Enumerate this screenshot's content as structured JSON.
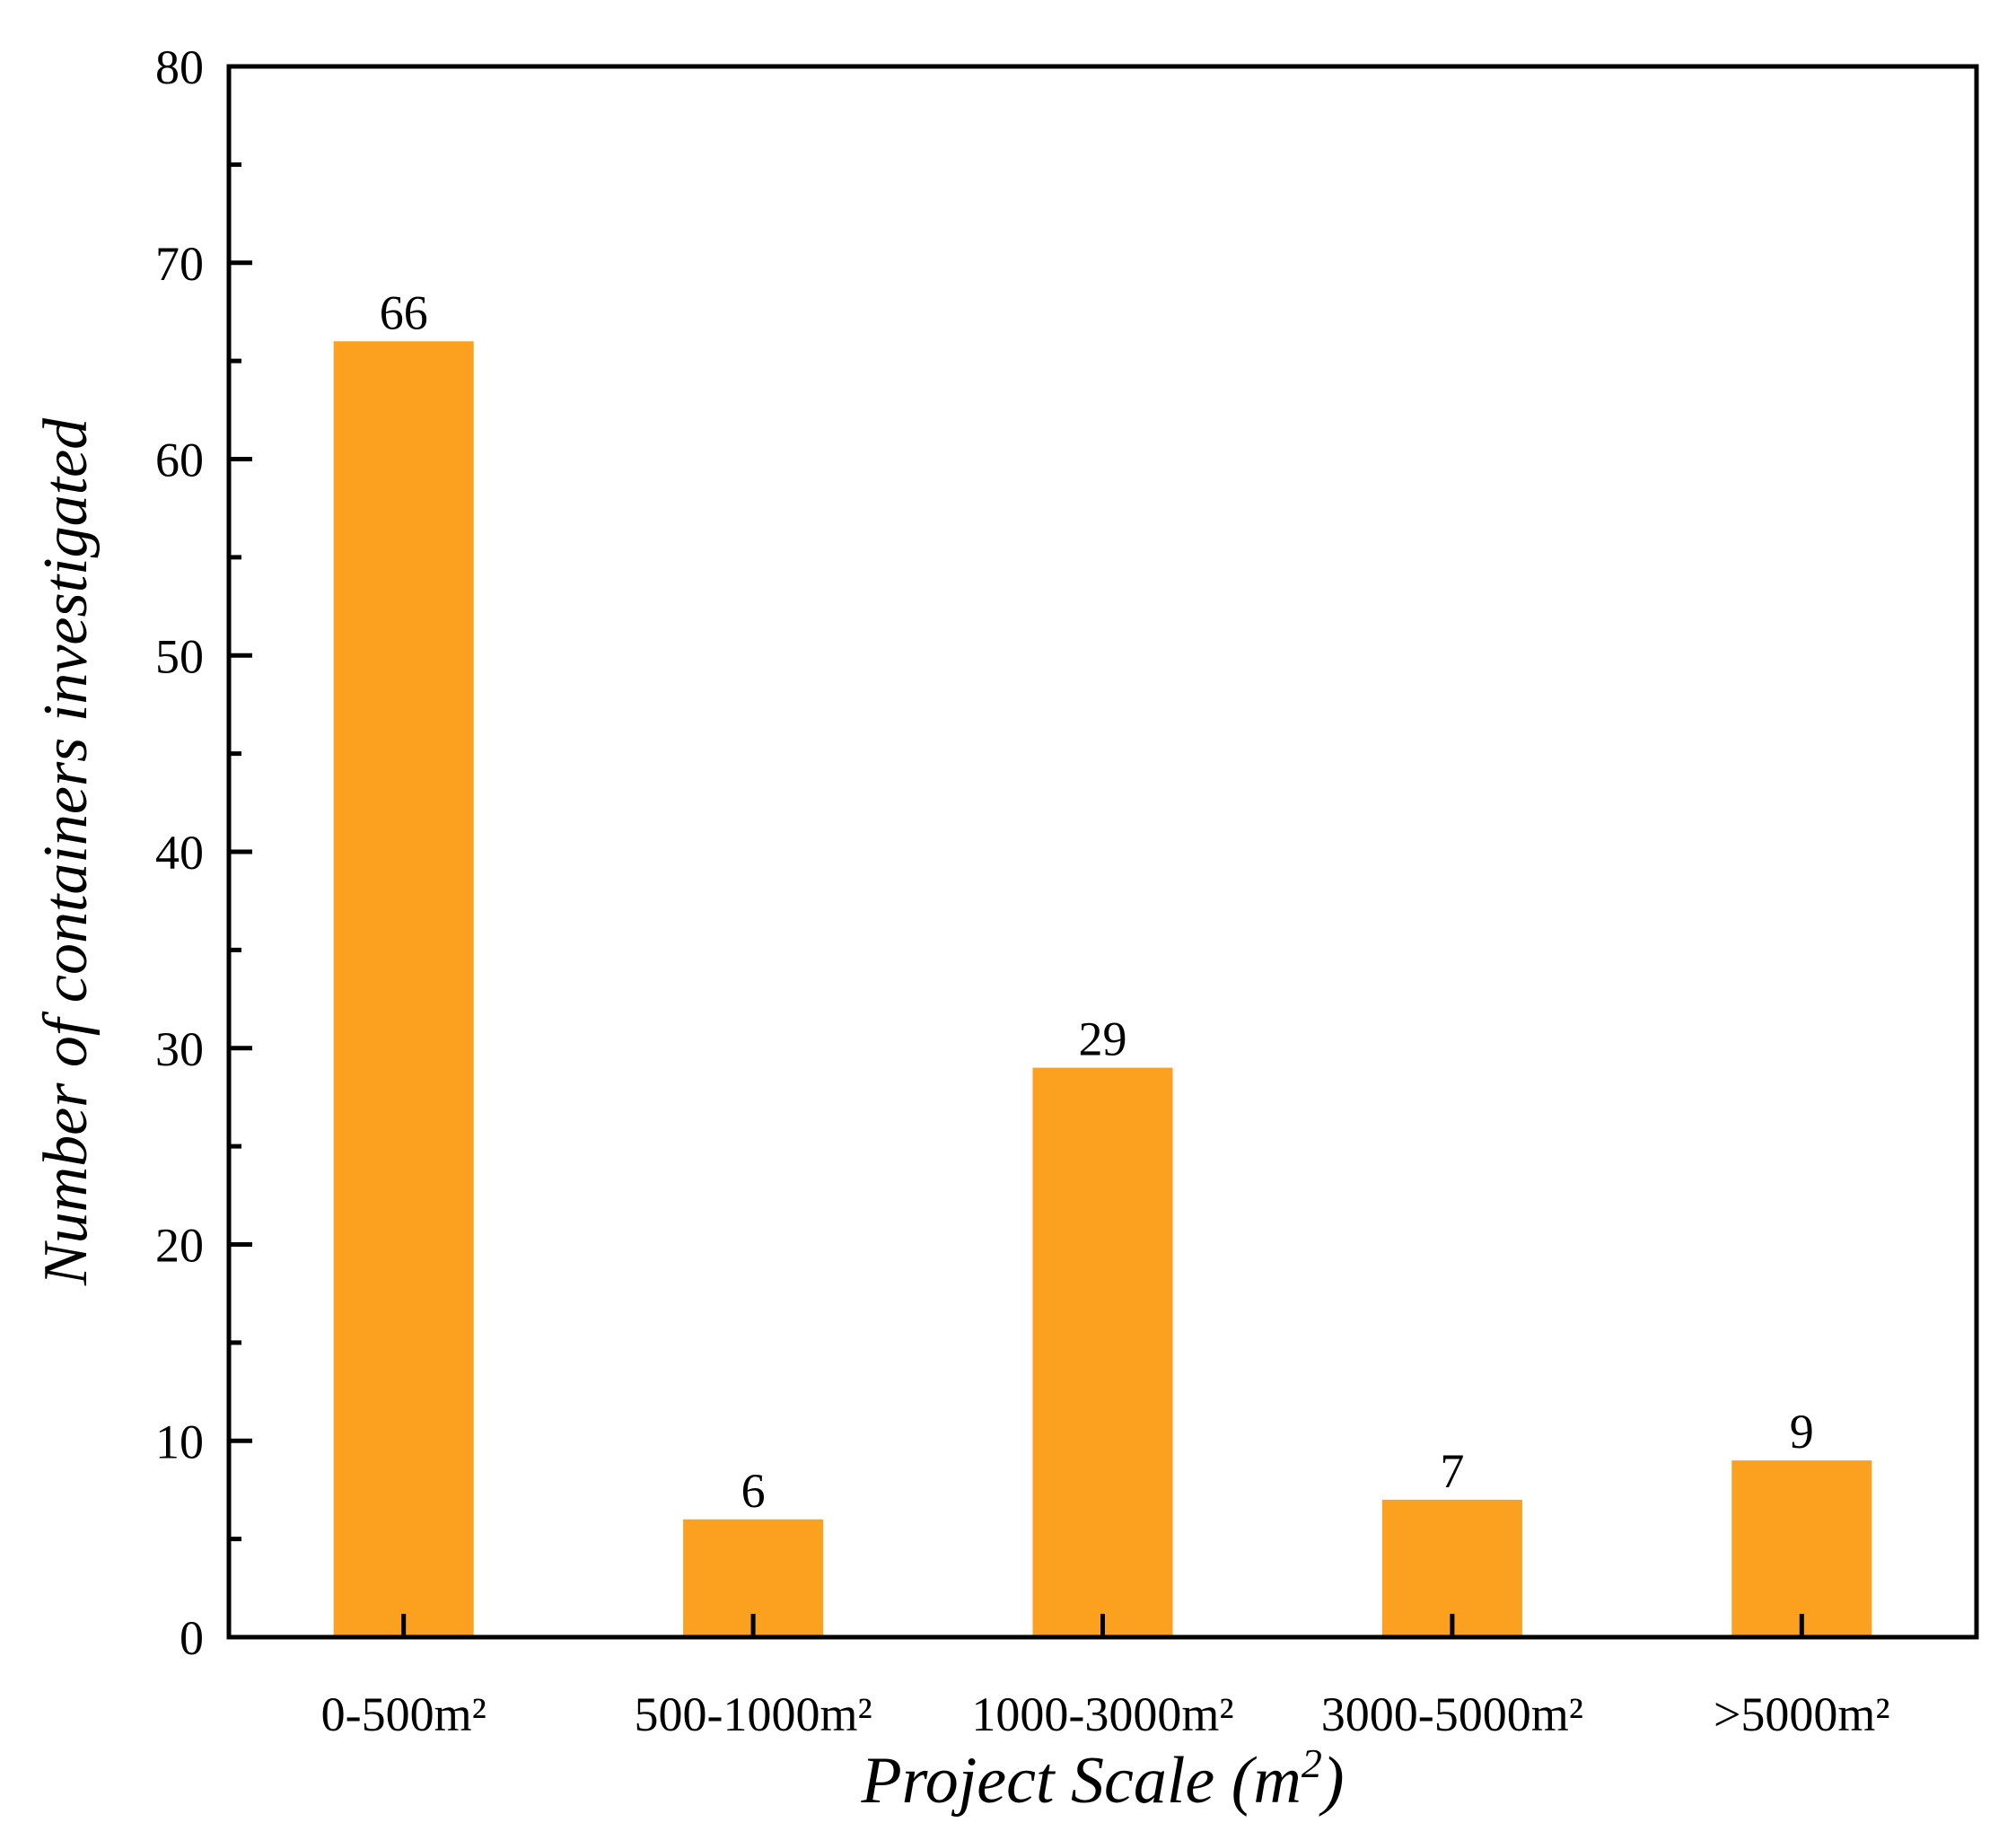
{
  "chart_data": {
    "type": "bar",
    "title": "",
    "categories": [
      "0-500m²",
      "500-1000m²",
      "1000-3000m²",
      "3000-5000m²",
      ">5000m²"
    ],
    "values": [
      66,
      6,
      29,
      7,
      9
    ],
    "data_labels": [
      "66",
      "6",
      "29",
      "7",
      "9"
    ],
    "xlabel": "Project Scale (m",
    "xlabel_superscript": "2",
    "xlabel_suffix": ")",
    "ylabel": "Number of containers investigated",
    "ylim": [
      0,
      80
    ],
    "yticks": [
      0,
      10,
      20,
      30,
      40,
      50,
      60,
      70,
      80
    ],
    "ytick_labels": [
      "0",
      "10",
      "20",
      "30",
      "40",
      "50",
      "60",
      "70",
      "80"
    ],
    "y_minor_step": 5,
    "grid": false,
    "legend": "none",
    "bar_color": "#FBA01F",
    "axis_color": "#000000"
  }
}
